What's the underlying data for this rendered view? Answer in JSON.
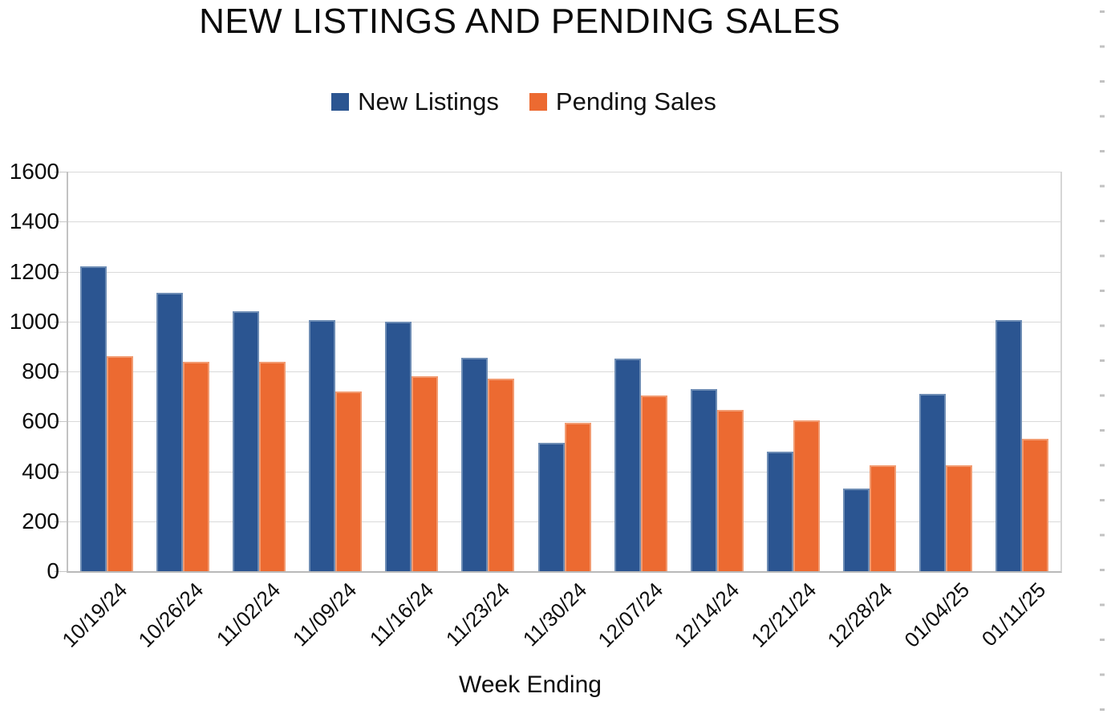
{
  "title": "NEW LISTINGS AND PENDING SALES",
  "chart_data": {
    "type": "bar",
    "title": "NEW LISTINGS AND PENDING SALES",
    "xlabel": "Week Ending",
    "ylabel": "",
    "ylim": [
      0,
      1600
    ],
    "y_ticks": [
      0,
      200,
      400,
      600,
      800,
      1000,
      1200,
      1400,
      1600
    ],
    "grid": true,
    "legend_position": "top",
    "categories": [
      "10/19/24",
      "10/26/24",
      "11/02/24",
      "11/09/24",
      "11/16/24",
      "11/23/24",
      "11/30/24",
      "12/07/24",
      "12/14/24",
      "12/21/24",
      "12/28/24",
      "01/04/25",
      "01/11/25"
    ],
    "series": [
      {
        "name": "New Listings",
        "color": "#2b5591",
        "values": [
          1220,
          1115,
          1040,
          1005,
          1000,
          855,
          515,
          850,
          730,
          480,
          330,
          710,
          1005
        ]
      },
      {
        "name": "Pending Sales",
        "color": "#ec6a31",
        "values": [
          860,
          840,
          840,
          720,
          780,
          770,
          595,
          705,
          645,
          605,
          425,
          425,
          530
        ]
      }
    ]
  }
}
